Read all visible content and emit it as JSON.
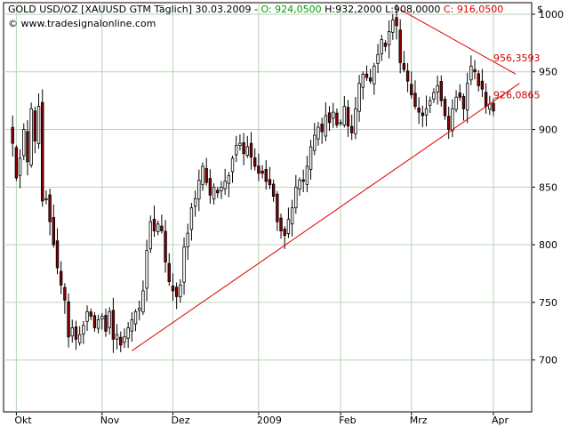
{
  "header": {
    "symbol": "GOLD USD/OZ [XAUUSD GTM  Täglich]",
    "date": "30.03.2009",
    "open_label": "O:",
    "open_value": "924,0500",
    "high_low": "H:932,2000 L:908,0000",
    "close_label": "C:",
    "close_value": "916,0500",
    "currency": "$",
    "website": "© www.tradesignalonline.com"
  },
  "colors": {
    "background": "#ffffff",
    "grid": "#b6d4b6",
    "candle_up": "#ffffff",
    "candle_down": "#880000",
    "wick": "#000000",
    "trendline": "#e00000",
    "annotation": "#d00000",
    "open_value": "#00a000",
    "close_value": "#e00000"
  },
  "chart_data": {
    "type": "candlestick",
    "title": "GOLD USD/OZ [XAUUSD GTM  Täglich]",
    "y_axis_position": "right",
    "ylim": [
      655,
      1010
    ],
    "y_ticks": [
      700,
      750,
      800,
      850,
      900,
      950,
      1000
    ],
    "x_range": [
      0,
      130
    ],
    "x_ticks": [
      {
        "label": "Okt",
        "x": 2
      },
      {
        "label": "Nov",
        "x": 25
      },
      {
        "label": "Dez",
        "x": 44
      },
      {
        "label": "2009",
        "x": 67
      },
      {
        "label": "Feb",
        "x": 89
      },
      {
        "label": "Mrz",
        "x": 108
      },
      {
        "label": "Apr",
        "x": 130
      }
    ],
    "grid": true,
    "anchors": [
      [
        0,
        905
      ],
      [
        1,
        888
      ],
      [
        2,
        858
      ],
      [
        3,
        875
      ],
      [
        4,
        900
      ],
      [
        5,
        872
      ],
      [
        6,
        918
      ],
      [
        7,
        890
      ],
      [
        8,
        920
      ],
      [
        9,
        838
      ],
      [
        10,
        840
      ],
      [
        11,
        820
      ],
      [
        12,
        800
      ],
      [
        13,
        780
      ],
      [
        14,
        765
      ],
      [
        15,
        752
      ],
      [
        16,
        720
      ],
      [
        17,
        728
      ],
      [
        18,
        718
      ],
      [
        19,
        722
      ],
      [
        20,
        730
      ],
      [
        21,
        742
      ],
      [
        22,
        738
      ],
      [
        23,
        728
      ],
      [
        24,
        735
      ],
      [
        25,
        738
      ],
      [
        26,
        725
      ],
      [
        27,
        742
      ],
      [
        28,
        718
      ],
      [
        29,
        722
      ],
      [
        30,
        713
      ],
      [
        31,
        720
      ],
      [
        32,
        728
      ],
      [
        33,
        735
      ],
      [
        34,
        742
      ],
      [
        35,
        745
      ],
      [
        36,
        760
      ],
      [
        37,
        795
      ],
      [
        38,
        820
      ],
      [
        39,
        812
      ],
      [
        40,
        818
      ],
      [
        41,
        812
      ],
      [
        42,
        785
      ],
      [
        43,
        768
      ],
      [
        44,
        760
      ],
      [
        45,
        755
      ],
      [
        46,
        765
      ],
      [
        47,
        798
      ],
      [
        48,
        810
      ],
      [
        49,
        832
      ],
      [
        50,
        840
      ],
      [
        51,
        856
      ],
      [
        52,
        868
      ],
      [
        53,
        854
      ],
      [
        54,
        843
      ],
      [
        55,
        850
      ],
      [
        56,
        845
      ],
      [
        57,
        850
      ],
      [
        58,
        855
      ],
      [
        59,
        860
      ],
      [
        60,
        875
      ],
      [
        61,
        886
      ],
      [
        62,
        888
      ],
      [
        63,
        879
      ],
      [
        64,
        885
      ],
      [
        65,
        876
      ],
      [
        66,
        868
      ],
      [
        67,
        862
      ],
      [
        68,
        862
      ],
      [
        69,
        855
      ],
      [
        70,
        852
      ],
      [
        71,
        842
      ],
      [
        72,
        820
      ],
      [
        73,
        812
      ],
      [
        74,
        808
      ],
      [
        75,
        822
      ],
      [
        76,
        832
      ],
      [
        77,
        850
      ],
      [
        78,
        856
      ],
      [
        79,
        855
      ],
      [
        80,
        868
      ],
      [
        81,
        885
      ],
      [
        82,
        895
      ],
      [
        83,
        902
      ],
      [
        84,
        898
      ],
      [
        85,
        912
      ],
      [
        86,
        906
      ],
      [
        87,
        915
      ],
      [
        88,
        904
      ],
      [
        89,
        906
      ],
      [
        90,
        920
      ],
      [
        91,
        903
      ],
      [
        92,
        897
      ],
      [
        93,
        918
      ],
      [
        94,
        940
      ],
      [
        95,
        948
      ],
      [
        96,
        945
      ],
      [
        97,
        942
      ],
      [
        98,
        955
      ],
      [
        99,
        965
      ],
      [
        100,
        978
      ],
      [
        101,
        972
      ],
      [
        102,
        985
      ],
      [
        103,
        995
      ],
      [
        104,
        990
      ],
      [
        105,
        958
      ],
      [
        106,
        952
      ],
      [
        107,
        942
      ],
      [
        108,
        930
      ],
      [
        109,
        920
      ],
      [
        110,
        915
      ],
      [
        111,
        912
      ],
      [
        112,
        918
      ],
      [
        113,
        925
      ],
      [
        114,
        932
      ],
      [
        115,
        938
      ],
      [
        116,
        925
      ],
      [
        117,
        912
      ],
      [
        118,
        900
      ],
      [
        119,
        918
      ],
      [
        120,
        928
      ],
      [
        121,
        928
      ],
      [
        122,
        918
      ],
      [
        123,
        940
      ],
      [
        124,
        955
      ],
      [
        125,
        950
      ],
      [
        126,
        938
      ],
      [
        127,
        935
      ],
      [
        128,
        920
      ],
      [
        129,
        922
      ],
      [
        130,
        916
      ]
    ],
    "trendlines": [
      {
        "name": "support",
        "x1": 33,
        "y1": 708,
        "x2": 137,
        "y2": 940
      },
      {
        "name": "resistance",
        "x1": 105,
        "y1": 1004,
        "x2": 136,
        "y2": 948
      }
    ],
    "annotations": [
      {
        "text": "956,3593",
        "x": 130,
        "y": 959
      },
      {
        "text": "926,0865",
        "x": 130,
        "y": 927
      }
    ]
  }
}
